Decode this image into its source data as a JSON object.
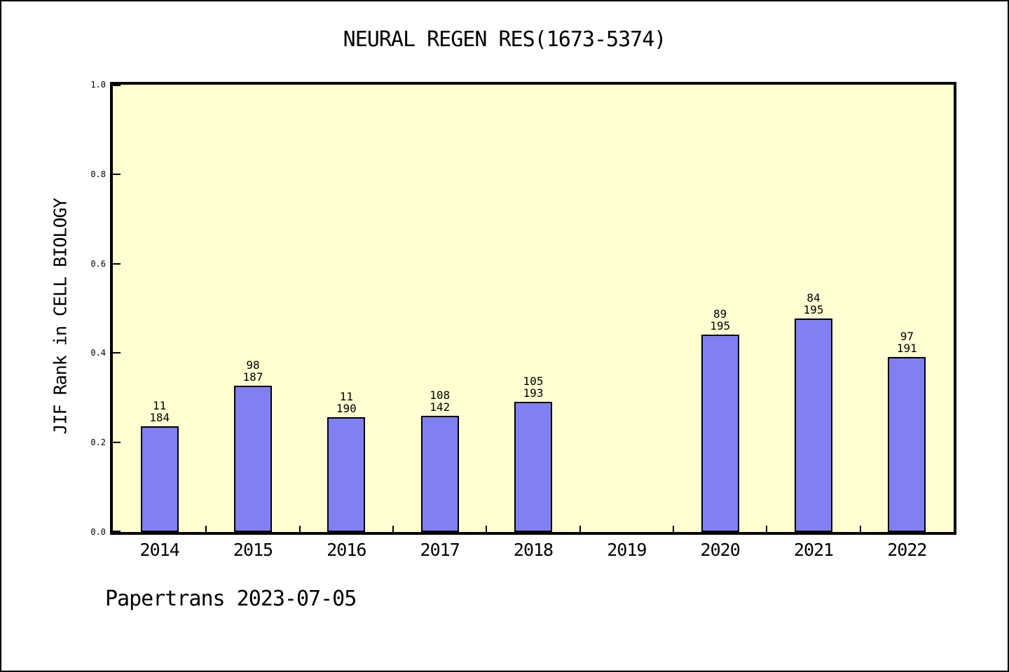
{
  "window": {
    "background": "#ffffff",
    "border_color": "#000000"
  },
  "chart_data": {
    "type": "bar",
    "title": "NEURAL REGEN RES(1673-5374)",
    "ylabel": "JIF Rank in CELL BIOLOGY",
    "xlabel": "",
    "footer": "Papertrans 2023-07-05",
    "categories": [
      "2014",
      "2015",
      "2016",
      "2017",
      "2018",
      "2019",
      "2020",
      "2021",
      "2022"
    ],
    "values": [
      0.237,
      0.327,
      0.257,
      0.26,
      0.291,
      null,
      0.441,
      0.477,
      0.391
    ],
    "bar_labels": [
      [
        "11",
        "184"
      ],
      [
        "98",
        "187"
      ],
      [
        "11",
        "190"
      ],
      [
        "108",
        "142"
      ],
      [
        "105",
        "193"
      ],
      null,
      [
        "89",
        "195"
      ],
      [
        "84",
        "195"
      ],
      [
        "97",
        "191"
      ]
    ],
    "ylim": [
      0.0,
      1.0
    ],
    "yticks": [
      {
        "value": 0.0,
        "label": "0.0"
      },
      {
        "value": 0.2,
        "label": "0.2"
      },
      {
        "value": 0.4,
        "label": "0.4"
      },
      {
        "value": 0.6,
        "label": "0.6"
      },
      {
        "value": 0.8,
        "label": "0.8"
      },
      {
        "value": 1.0,
        "label": "1.0"
      }
    ],
    "grid": false,
    "legend_position": "none",
    "colors": {
      "bar_fill": "#8080f2",
      "bar_border": "#000000",
      "plot_background": "#ffffd2",
      "axis": "#000000",
      "text": "#000000"
    }
  }
}
